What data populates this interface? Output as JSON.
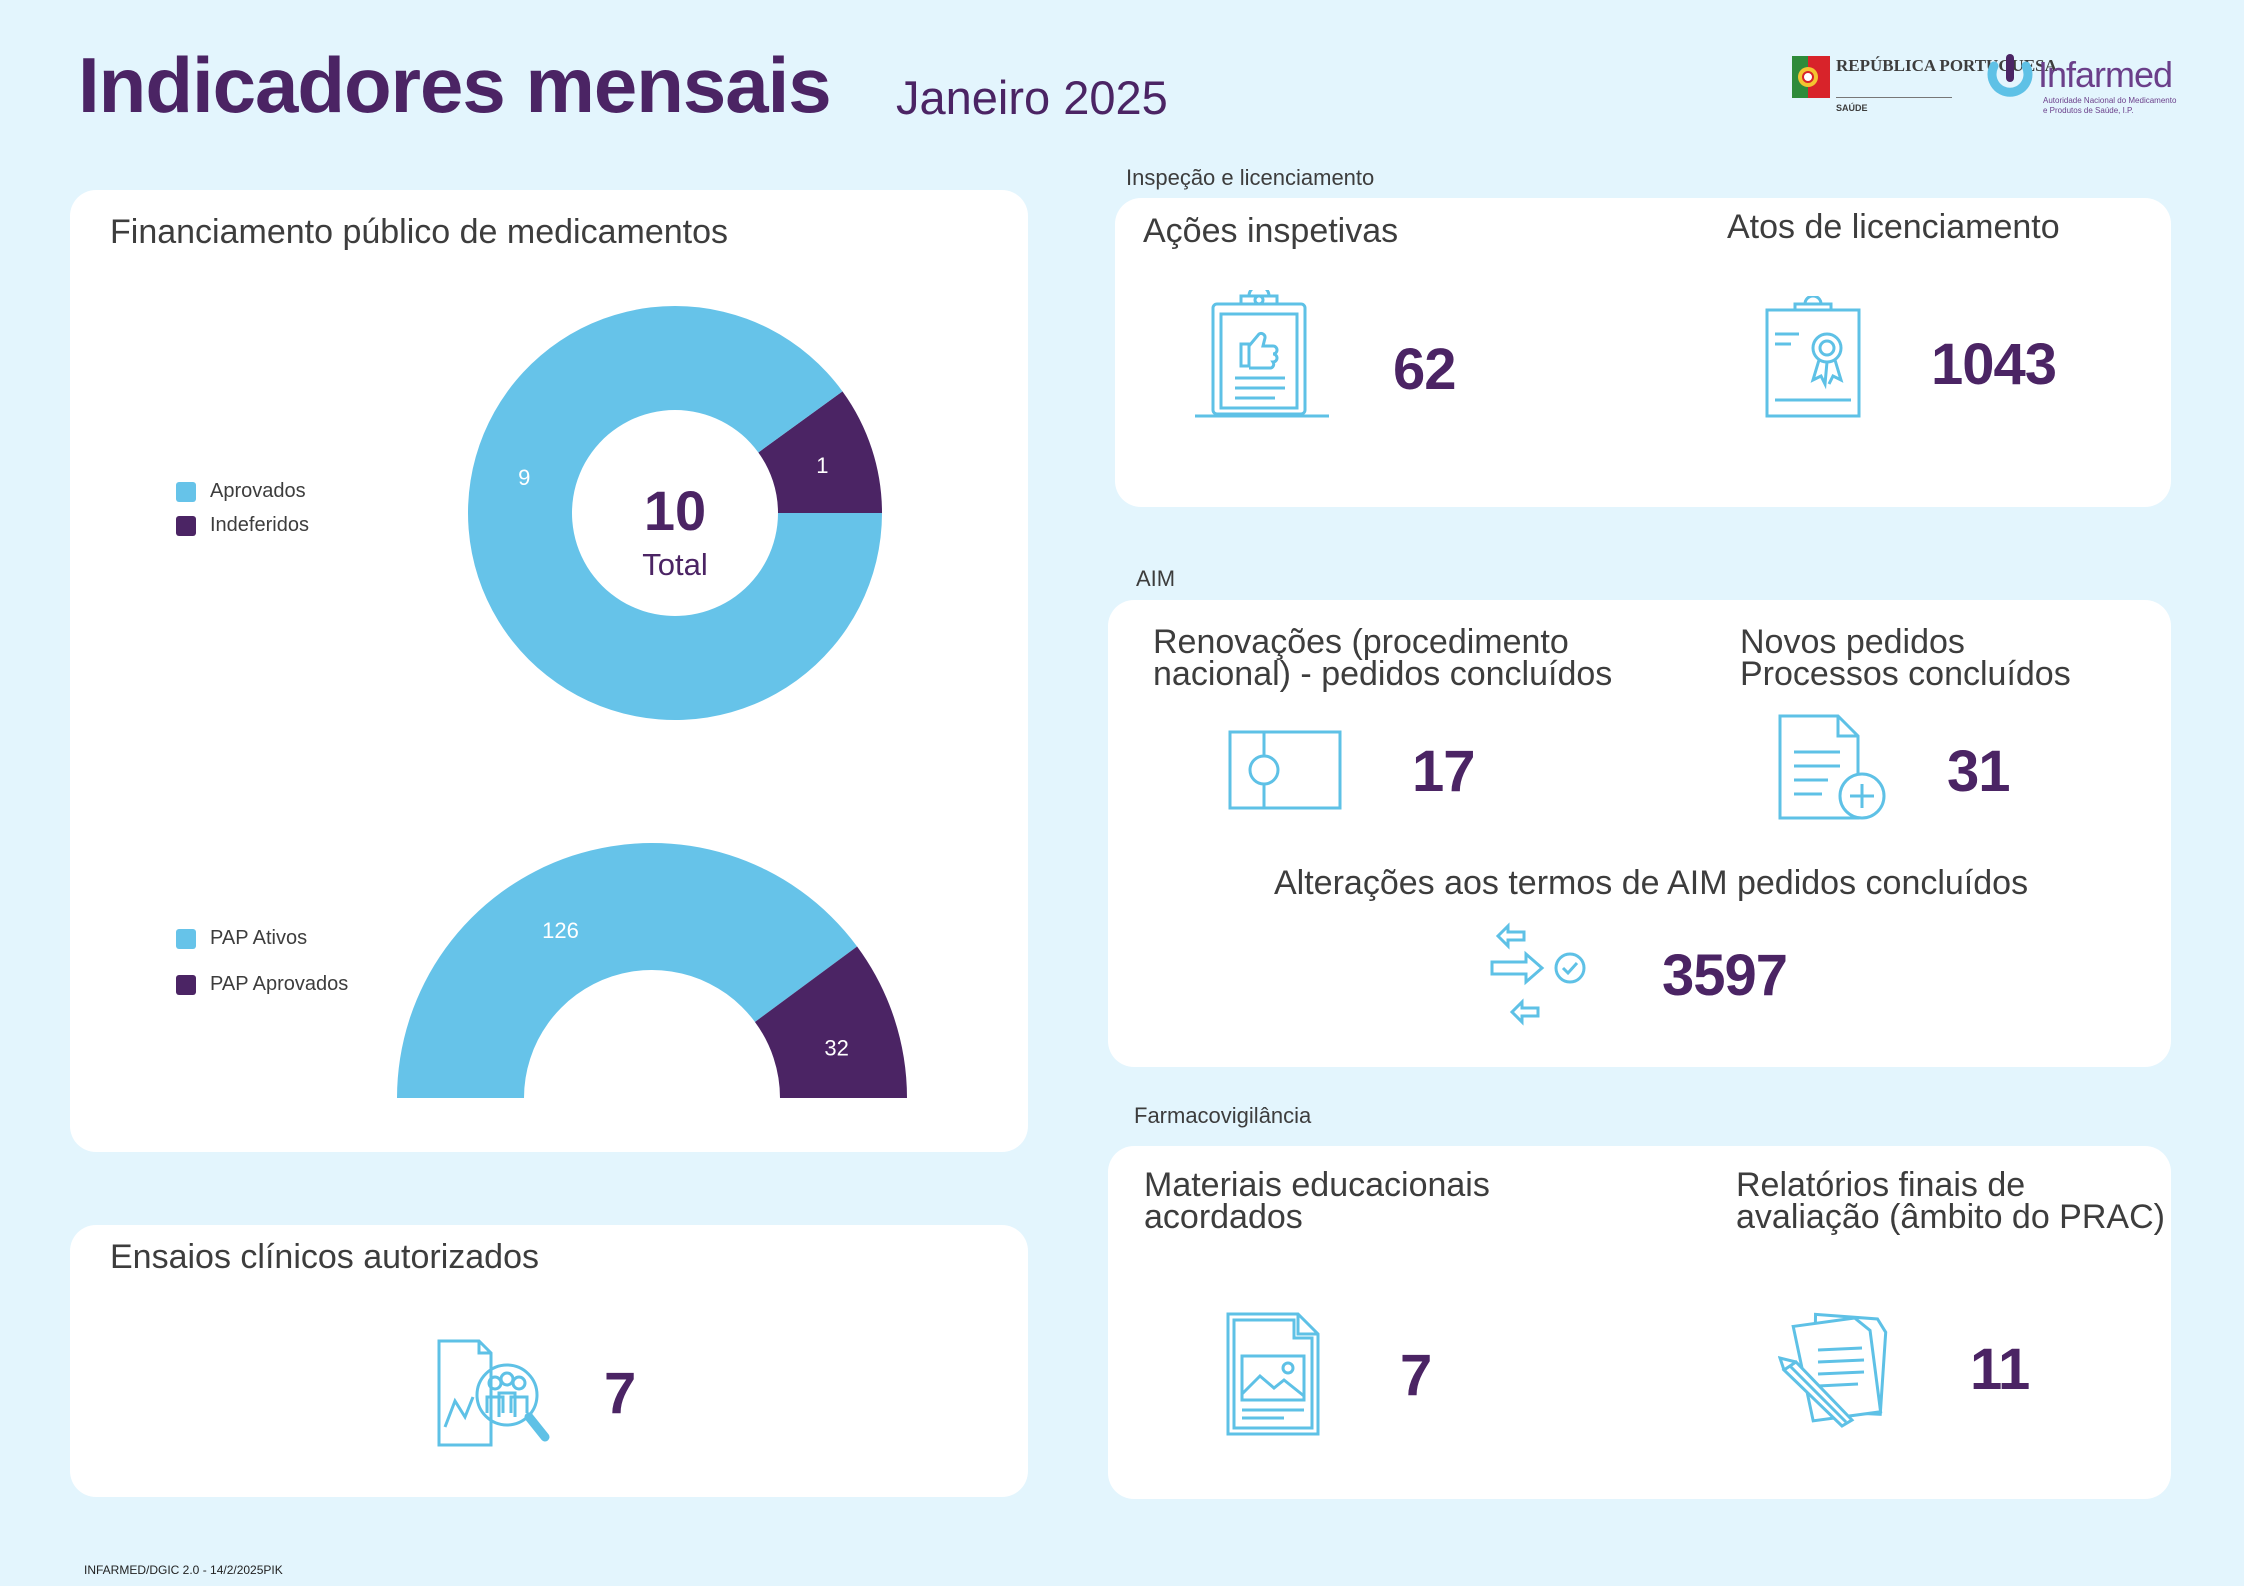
{
  "header": {
    "title": "Indicadores mensais",
    "period": "Janeiro 2025",
    "logo_republica": "REPÚBLICA PORTUGUESA",
    "logo_republica_sub": "SAÚDE",
    "logo_infarmed": "Infarmed",
    "logo_infarmed_sub1": "Autoridade Nacional do Medicamento",
    "logo_infarmed_sub2": "e Produtos de Saúde, I.P."
  },
  "colors": {
    "light": "#66c3e9",
    "dark": "#4b2464",
    "background": "#e3f5fd",
    "icon": "#5ec1e6"
  },
  "financiamento": {
    "title": "Financiamento público de medicamentos",
    "donut_center_value": "10",
    "donut_center_label": "Total"
  },
  "chart_data": [
    {
      "type": "pie",
      "subtype": "donut",
      "title": "Financiamento público de medicamentos",
      "categories": [
        "Aprovados",
        "Indeferidos"
      ],
      "values": [
        9,
        1
      ],
      "value_labels": [
        "9",
        "1"
      ],
      "legend": "left",
      "center_text": [
        "10",
        "Total"
      ]
    },
    {
      "type": "pie",
      "subtype": "half-donut",
      "categories": [
        "PAP Ativos",
        "PAP Aprovados"
      ],
      "values": [
        126,
        32
      ],
      "value_labels": [
        "126",
        "32"
      ],
      "legend": "left"
    }
  ],
  "ensaios": {
    "title": "Ensaios clínicos autorizados",
    "value": "7"
  },
  "inspecao": {
    "section": "Inspeção e licenciamento",
    "acoes_title": "Ações inspetivas",
    "acoes_value": "62",
    "atos_title": "Atos de licenciamento",
    "atos_value": "1043"
  },
  "aim": {
    "section": "AIM",
    "renov_title_1": "Renovações (procedimento",
    "renov_title_2": "nacional) - pedidos concluídos",
    "renov_value": "17",
    "novos_title_1": "Novos pedidos",
    "novos_title_2": "Processos concluídos",
    "novos_value": "31",
    "alter_title": "Alterações aos termos de AIM pedidos concluídos",
    "alter_value": "3597"
  },
  "farmaco": {
    "section": "Farmacovigilância",
    "mat_title_1": "Materiais educacionais",
    "mat_title_2": "acordados",
    "mat_value": "7",
    "rel_title_1": "Relatórios finais de",
    "rel_title_2": "avaliação (âmbito do PRAC)",
    "rel_value": "11"
  },
  "footer": {
    "text": "INFARMED/DGIC 2.0 - 14/2/2025PIK"
  }
}
